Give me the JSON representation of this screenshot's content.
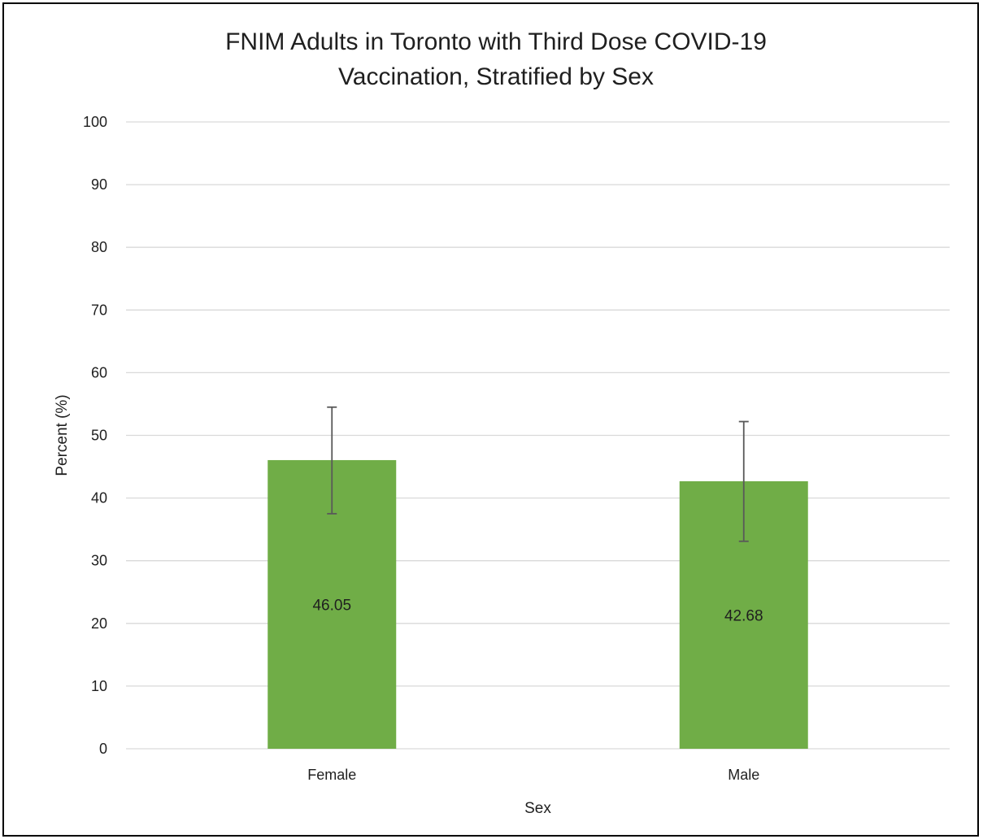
{
  "chart_data": {
    "type": "bar",
    "title": "FNIM Adults in Toronto with Third Dose COVID-19 Vaccination, Stratified by Sex",
    "title_lines": [
      "FNIM Adults in Toronto with Third Dose COVID-19",
      "Vaccination, Stratified by Sex"
    ],
    "xlabel": "Sex",
    "ylabel": "Percent (%)",
    "categories": [
      "Female",
      "Male"
    ],
    "values": [
      46.05,
      42.68
    ],
    "data_labels": [
      "46.05",
      "42.68"
    ],
    "error_bars": [
      {
        "lower": 37.5,
        "upper": 54.5
      },
      {
        "lower": 33.1,
        "upper": 52.2
      }
    ],
    "ylim": [
      0,
      100
    ],
    "yticks": [
      0,
      10,
      20,
      30,
      40,
      50,
      60,
      70,
      80,
      90,
      100
    ],
    "ytick_labels": [
      "0",
      "10",
      "20",
      "30",
      "40",
      "50",
      "60",
      "70",
      "80",
      "90",
      "100"
    ],
    "grid": true,
    "legend": "none",
    "colors": {
      "bar": "#70AD47",
      "grid": "#D9D9D9",
      "error_bar": "#595959",
      "frame": "#000000"
    }
  }
}
